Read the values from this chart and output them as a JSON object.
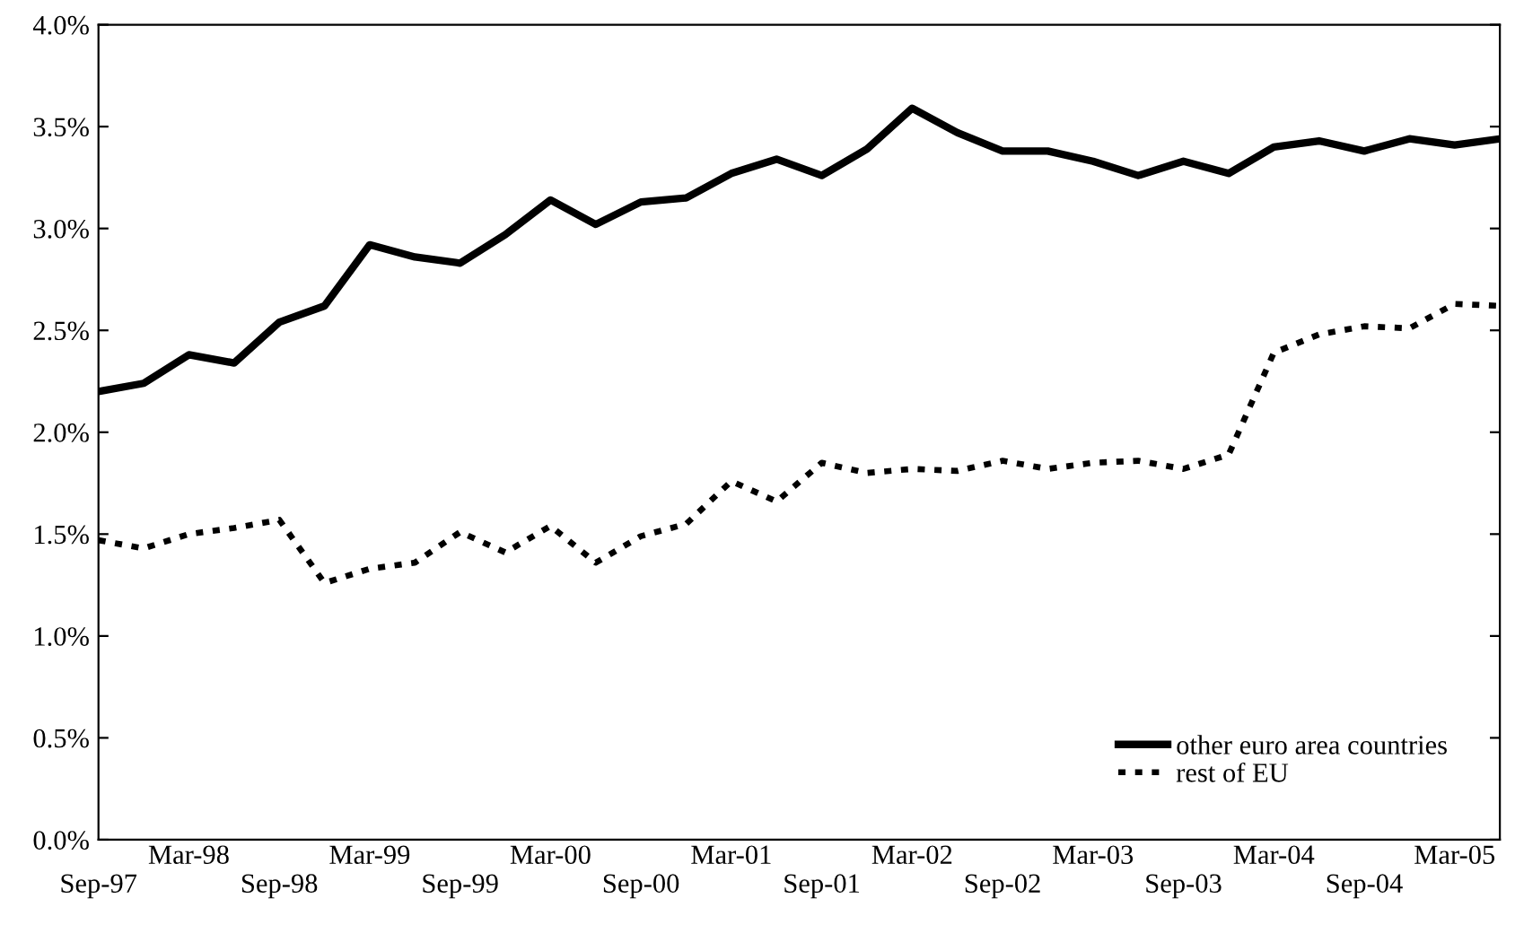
{
  "chart_data": {
    "type": "line",
    "categories": [
      "Sep-97",
      null,
      "Mar-98",
      null,
      "Sep-98",
      null,
      "Mar-99",
      null,
      "Sep-99",
      null,
      "Mar-00",
      null,
      "Sep-00",
      null,
      "Mar-01",
      null,
      "Sep-01",
      null,
      "Mar-02",
      null,
      "Sep-02",
      null,
      "Mar-03",
      null,
      "Sep-03",
      null,
      "Mar-04",
      null,
      "Sep-04",
      null,
      "Mar-05",
      null
    ],
    "series": [
      {
        "name": "other euro area countries",
        "color": "#000000",
        "line_style": "solid",
        "values": [
          2.2,
          2.24,
          2.38,
          2.34,
          2.54,
          2.62,
          2.92,
          2.86,
          2.83,
          2.97,
          3.14,
          3.02,
          3.13,
          3.15,
          3.27,
          3.34,
          3.26,
          3.39,
          3.59,
          3.47,
          3.38,
          3.38,
          3.33,
          3.26,
          3.33,
          3.27,
          3.4,
          3.43,
          3.38,
          3.44,
          3.41,
          3.44
        ]
      },
      {
        "name": "rest of EU",
        "color": "#000000",
        "line_style": "dotted",
        "values": [
          1.47,
          1.43,
          1.5,
          1.53,
          1.57,
          1.26,
          1.33,
          1.36,
          1.51,
          1.41,
          1.54,
          1.36,
          1.49,
          1.55,
          1.76,
          1.66,
          1.85,
          1.8,
          1.82,
          1.81,
          1.86,
          1.82,
          1.85,
          1.86,
          1.82,
          1.89,
          2.39,
          2.48,
          2.52,
          2.51,
          2.63,
          2.62
        ]
      }
    ],
    "ylim": [
      0,
      4
    ],
    "yticks": [
      {
        "value": 0,
        "label": "0.0%"
      },
      {
        "value": 0.5,
        "label": "0.5%"
      },
      {
        "value": 1,
        "label": "1.0%"
      },
      {
        "value": 1.5,
        "label": "1.5%"
      },
      {
        "value": 2,
        "label": "2.0%"
      },
      {
        "value": 2.5,
        "label": "2.5%"
      },
      {
        "value": 3,
        "label": "3.0%"
      },
      {
        "value": 3.5,
        "label": "3.5%"
      },
      {
        "value": 4,
        "label": "4.0%"
      }
    ],
    "grid": false,
    "legend": "bottom right",
    "marker": "none"
  }
}
